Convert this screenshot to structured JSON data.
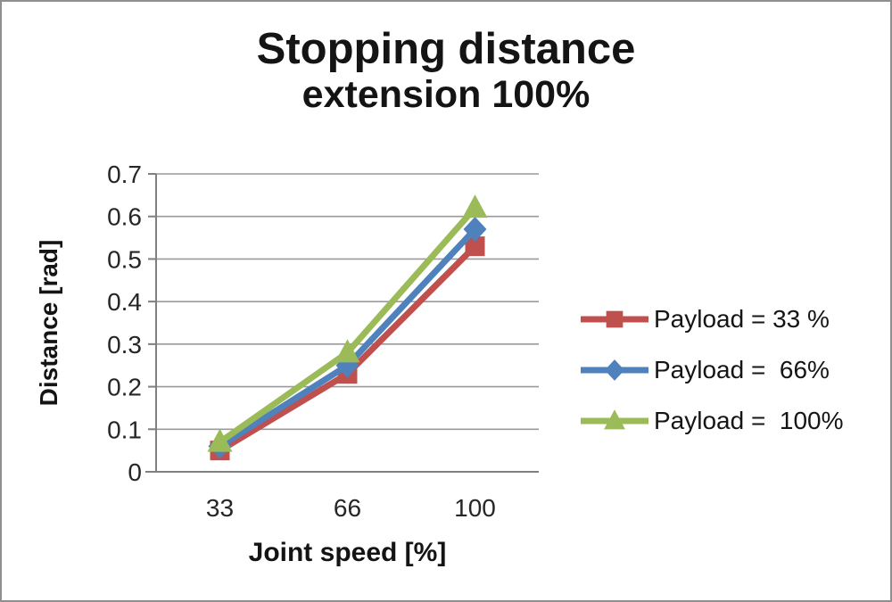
{
  "window": {
    "background": "#ffffff",
    "border_color": "#8f8f8f"
  },
  "chart_data": {
    "type": "line",
    "title": "Stopping distance",
    "subtitle": "extension 100%",
    "xlabel": "Joint speed [%]",
    "ylabel": "Distance [rad]",
    "categories": [
      "33",
      "66",
      "100"
    ],
    "series": [
      {
        "name": "Payload = 33 %",
        "color": "#c0504d",
        "marker": "square",
        "values": [
          0.05,
          0.23,
          0.53
        ]
      },
      {
        "name": "Payload =  66%",
        "color": "#4f81bd",
        "marker": "diamond",
        "values": [
          0.06,
          0.25,
          0.57
        ]
      },
      {
        "name": "Payload =  100%",
        "color": "#9bbb59",
        "marker": "triangle",
        "values": [
          0.07,
          0.28,
          0.62
        ]
      }
    ],
    "ylim": [
      0,
      0.7
    ],
    "y_tick_step": 0.1,
    "y_tick_labels": [
      "0",
      "0.1",
      "0.2",
      "0.3",
      "0.4",
      "0.5",
      "0.6",
      "0.7"
    ],
    "grid": true,
    "legend_position": "right",
    "styles": {
      "gridline_color": "#9a9a9a",
      "axis_color": "#7f7f7f",
      "tick_label_color": "#262626",
      "line_width": 7
    }
  }
}
